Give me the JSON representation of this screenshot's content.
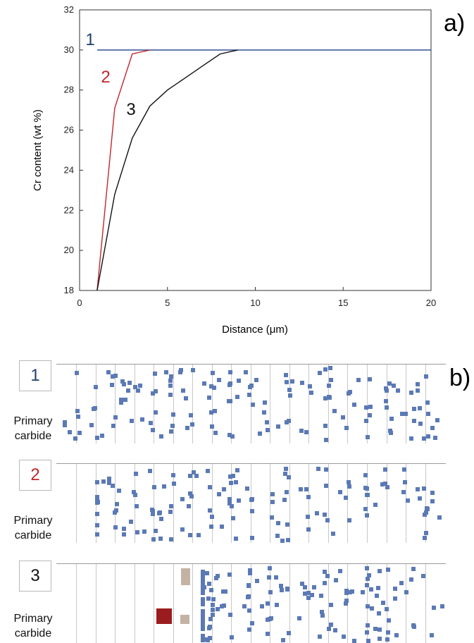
{
  "chart_data": {
    "type": "line",
    "panel_label": "a)",
    "xlabel": "Distance (μm)",
    "ylabel": "Cr content (wt %)",
    "xlim": [
      0,
      20
    ],
    "ylim": [
      18,
      32
    ],
    "xticks": [
      0,
      5,
      10,
      15,
      20
    ],
    "yticks": [
      18,
      20,
      22,
      24,
      26,
      28,
      30,
      32
    ],
    "grid": false,
    "series": [
      {
        "name": "1",
        "color": "#1f3f8c",
        "label_color": "#1f3f6e",
        "x": [
          1,
          20
        ],
        "y": [
          30,
          30
        ]
      },
      {
        "name": "2",
        "color": "#c0282d",
        "label_color": "#c0282d",
        "x": [
          1,
          2,
          3,
          4
        ],
        "y": [
          18.0,
          27.1,
          29.8,
          30.0
        ]
      },
      {
        "name": "3",
        "color": "#111111",
        "label_color": "#111111",
        "x": [
          1,
          2,
          3,
          4,
          5,
          6,
          7,
          8,
          9
        ],
        "y": [
          18.0,
          22.8,
          25.6,
          27.2,
          28.0,
          28.6,
          29.2,
          29.8,
          30.0
        ]
      }
    ]
  },
  "schematic": {
    "panel_label": "b)",
    "primary_label_line1": "Primary",
    "primary_label_line2": "carbide",
    "colors": {
      "carbide_dot": "#5b79b5",
      "primary_carbide": "#9b1c1f",
      "depleted_carbide": "#c4b3a4"
    },
    "panels": [
      {
        "number": "1",
        "number_color": "#1f3f6e"
      },
      {
        "number": "2",
        "number_color": "#c0282d"
      },
      {
        "number": "3",
        "number_color": "#111111"
      }
    ]
  }
}
